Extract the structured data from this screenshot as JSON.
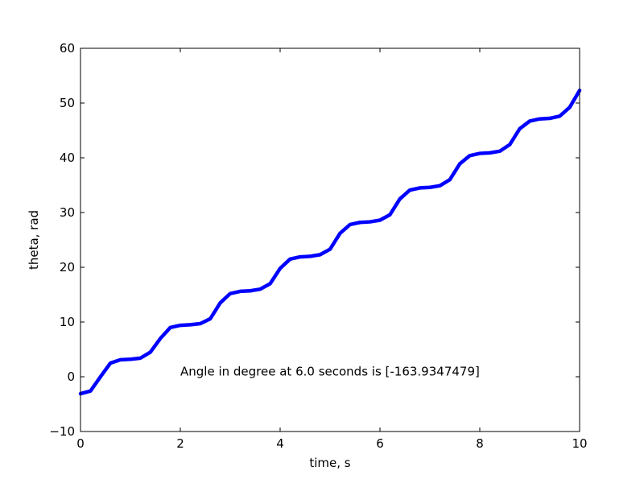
{
  "chart_data": {
    "type": "line",
    "title": "",
    "xlabel": "time, s",
    "ylabel": "theta, rad",
    "xlim": [
      0,
      10
    ],
    "ylim": [
      -10,
      60
    ],
    "xticks": [
      0,
      2,
      4,
      6,
      8,
      10
    ],
    "yticks": [
      -10,
      0,
      10,
      20,
      30,
      40,
      50,
      60
    ],
    "xtick_labels": [
      "0",
      "2",
      "4",
      "6",
      "8",
      "10"
    ],
    "ytick_labels": [
      "−10",
      "0",
      "10",
      "20",
      "30",
      "40",
      "50",
      "60"
    ],
    "grid": false,
    "series": [
      {
        "color": "#0000ff",
        "x": [
          0,
          0.2,
          0.4,
          0.6,
          0.8,
          1.0,
          1.2,
          1.4,
          1.6,
          1.8,
          2.0,
          2.2,
          2.4,
          2.6,
          2.8,
          3.0,
          3.2,
          3.4,
          3.6,
          3.8,
          4.0,
          4.2,
          4.4,
          4.6,
          4.8,
          5.0,
          5.2,
          5.4,
          5.6,
          5.8,
          6.0,
          6.2,
          6.4,
          6.6,
          6.8,
          7.0,
          7.2,
          7.4,
          7.6,
          7.8,
          8.0,
          8.2,
          8.4,
          8.6,
          8.8,
          9.0,
          9.2,
          9.4,
          9.6,
          9.8,
          10.0
        ],
        "y": [
          -3.1,
          -2.6,
          0.0,
          2.5,
          3.1,
          3.2,
          3.4,
          4.5,
          7.0,
          9.0,
          9.4,
          9.5,
          9.7,
          10.6,
          13.5,
          15.2,
          15.6,
          15.7,
          16.0,
          17.0,
          19.8,
          21.5,
          21.9,
          22.0,
          22.3,
          23.3,
          26.2,
          27.8,
          28.2,
          28.3,
          28.6,
          29.6,
          32.5,
          34.1,
          34.5,
          34.6,
          34.9,
          36.0,
          38.9,
          40.4,
          40.8,
          40.9,
          41.2,
          42.4,
          45.3,
          46.7,
          47.1,
          47.2,
          47.6,
          49.2,
          52.3
        ]
      }
    ],
    "annotations": [
      {
        "text": "Angle in degree at 6.0 seconds is [-163.9347479]",
        "x": 2.0,
        "y": 0.2
      }
    ]
  }
}
